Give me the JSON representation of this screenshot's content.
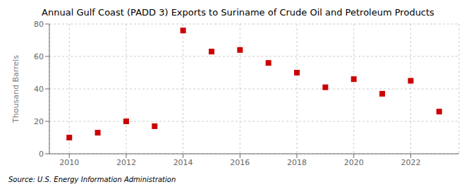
{
  "chart_data": {
    "type": "scatter",
    "title": "Annual Gulf Coast (PADD 3) Exports to Suriname of Crude Oil and Petroleum Products",
    "ylabel": "Thousand Barrels",
    "source": "Source: U.S. Energy Information Administration",
    "x": [
      2010,
      2011,
      2012,
      2013,
      2014,
      2015,
      2016,
      2017,
      2018,
      2019,
      2020,
      2021,
      2022,
      2023
    ],
    "values": [
      10,
      13,
      20,
      17,
      76,
      63,
      64,
      56,
      50,
      41,
      46,
      37,
      45,
      26
    ],
    "color": "#cc0000",
    "marker": "square",
    "xlim": [
      2009.3,
      2023.7
    ],
    "xticks": [
      2010,
      2012,
      2014,
      2016,
      2018,
      2020,
      2022
    ],
    "ylim": [
      0,
      80
    ],
    "yticks": [
      0,
      20,
      40,
      60,
      80
    ],
    "grid": true
  }
}
